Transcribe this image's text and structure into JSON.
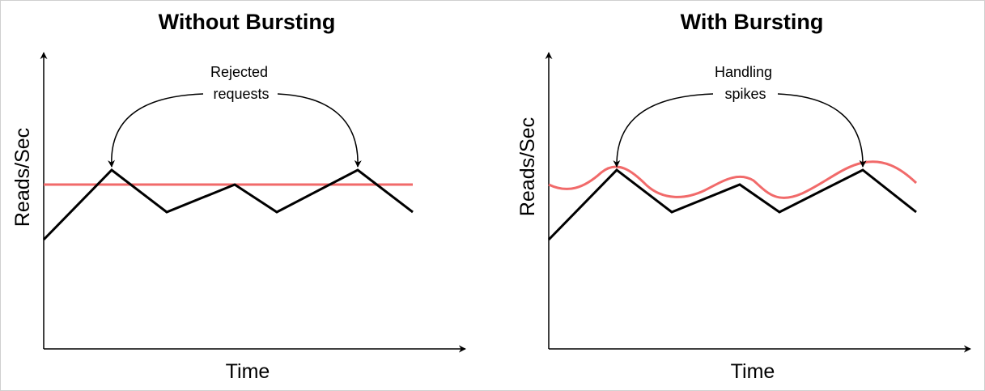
{
  "panels": [
    {
      "title": "Without Bursting",
      "y_label": "Reads/Sec",
      "x_label": "Time",
      "annotation": [
        "Rejected",
        "requests"
      ]
    },
    {
      "title": "With Bursting",
      "y_label": "Reads/Sec",
      "x_label": "Time",
      "annotation": [
        "Handling",
        "spikes"
      ]
    }
  ],
  "colors": {
    "demand_line": "#000000",
    "capacity_line": "#f16a6a"
  }
}
